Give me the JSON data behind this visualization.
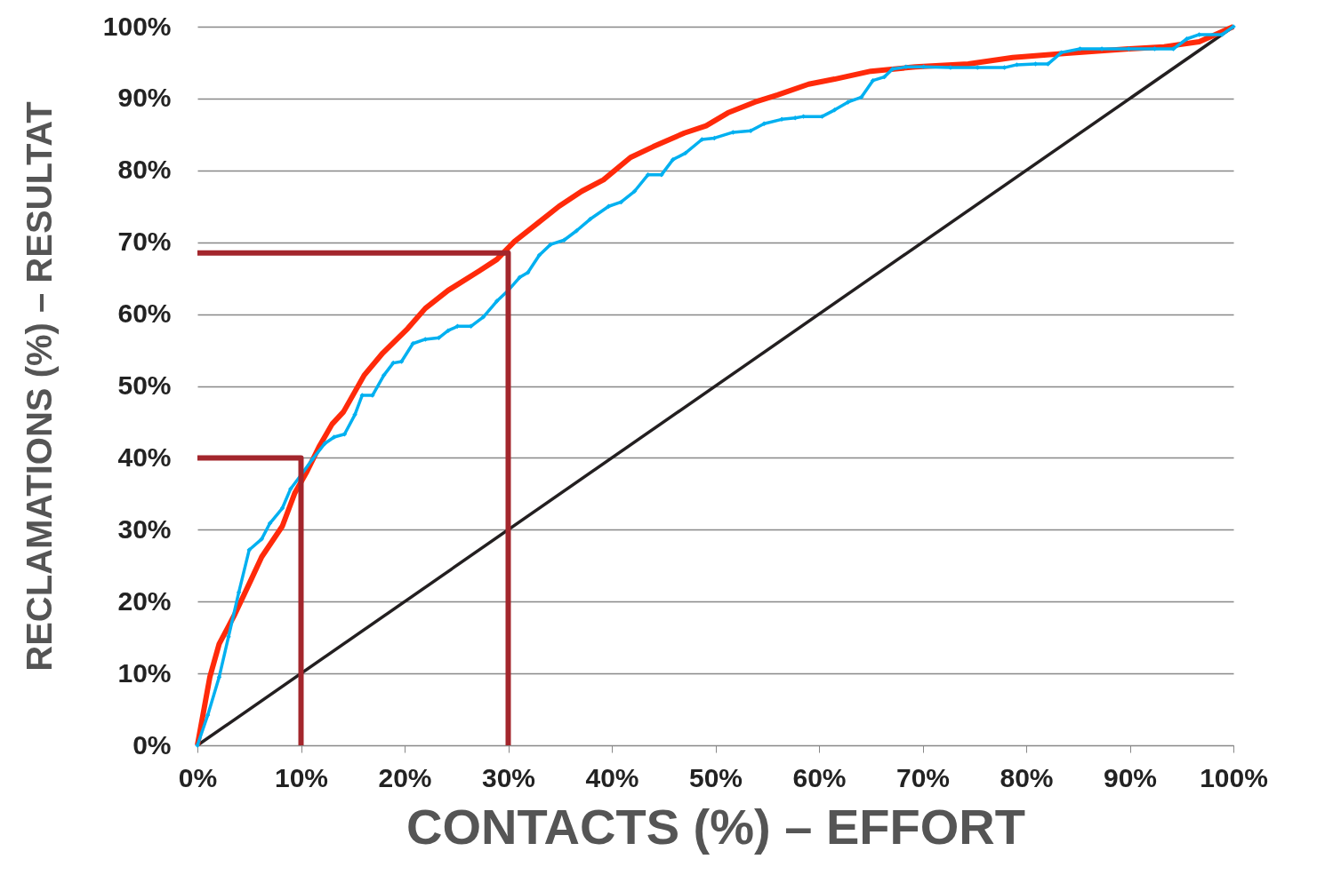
{
  "chart_data": {
    "type": "line",
    "xlabel": "CONTACTS (%) – EFFORT",
    "ylabel": "RECLAMATIONS (%) – RESULTAT",
    "xlim": [
      0,
      100
    ],
    "ylim": [
      0,
      100
    ],
    "xticks": [
      {
        "value": 0,
        "label": "0%"
      },
      {
        "value": 10,
        "label": "10%"
      },
      {
        "value": 20,
        "label": "20%"
      },
      {
        "value": 30,
        "label": "30%"
      },
      {
        "value": 40,
        "label": "40%"
      },
      {
        "value": 50,
        "label": "50%"
      },
      {
        "value": 60,
        "label": "60%"
      },
      {
        "value": 70,
        "label": "70%"
      },
      {
        "value": 80,
        "label": "80%"
      },
      {
        "value": 90,
        "label": "90%"
      },
      {
        "value": 100,
        "label": "100%"
      }
    ],
    "yticks": [
      {
        "value": 0,
        "label": "0%"
      },
      {
        "value": 10,
        "label": "10%"
      },
      {
        "value": 20,
        "label": "20%"
      },
      {
        "value": 30,
        "label": "30%"
      },
      {
        "value": 40,
        "label": "40%"
      },
      {
        "value": 50,
        "label": "50%"
      },
      {
        "value": 60,
        "label": "60%"
      },
      {
        "value": 70,
        "label": "70%"
      },
      {
        "value": 80,
        "label": "80%"
      },
      {
        "value": 90,
        "label": "90%"
      },
      {
        "value": 100,
        "label": "100%"
      }
    ],
    "grid": "y",
    "line_style": "solid",
    "series": [
      {
        "color": "#231f20",
        "x": [
          0,
          100
        ],
        "values": [
          0,
          100
        ]
      },
      {
        "color": "#ff2a0a",
        "x": [
          0,
          1.2,
          2.1,
          3.6,
          5.2,
          6.2,
          8.2,
          9.4,
          10.5,
          11.8,
          13.0,
          14.1,
          16.1,
          17.9,
          20.3,
          22.0,
          24.2,
          27.2,
          28.9,
          30.6,
          32.8,
          34.9,
          37.1,
          39.2,
          41.8,
          44.0,
          47.0,
          49.1,
          51.2,
          53.8,
          56.0,
          59.0,
          61.5,
          65.0,
          69.3,
          74.4,
          78.7,
          83.9,
          89.9,
          93.3,
          96.7,
          100
        ],
        "values": [
          0,
          9.5,
          14.1,
          18.2,
          23.1,
          26.2,
          30.5,
          35.1,
          37.9,
          41.7,
          44.7,
          46.4,
          51.5,
          54.6,
          58.0,
          60.8,
          63.3,
          66.0,
          67.6,
          70.1,
          72.6,
          75.0,
          77.1,
          78.7,
          81.8,
          83.3,
          85.2,
          86.2,
          88.0,
          89.5,
          90.5,
          92.0,
          92.7,
          93.8,
          94.4,
          94.8,
          95.7,
          96.3,
          96.9,
          97.2,
          97.9,
          100
        ]
      },
      {
        "color": "#00b0f0",
        "marker": "diamond",
        "x": [
          0,
          1.0,
          2.1,
          3.0,
          4.0,
          5.0,
          6.2,
          7.0,
          8.2,
          9.0,
          10.0,
          11.1,
          12.3,
          13.2,
          14.2,
          15.2,
          15.9,
          16.9,
          18.0,
          18.9,
          19.7,
          20.8,
          22.0,
          23.3,
          24.2,
          25.1,
          26.4,
          27.6,
          28.9,
          30.0,
          31.1,
          31.9,
          33.0,
          34.1,
          35.4,
          36.6,
          37.9,
          39.7,
          40.9,
          42.2,
          43.5,
          44.8,
          45.9,
          47.1,
          48.7,
          49.9,
          51.7,
          53.4,
          54.7,
          56.4,
          57.7,
          58.5,
          60.3,
          61.5,
          62.8,
          64.1,
          65.2,
          66.3,
          67.1,
          68.4,
          70.1,
          72.7,
          75.3,
          77.9,
          79.1,
          80.9,
          82.1,
          83.4,
          85.2,
          87.3,
          89.9,
          92.4,
          94.2,
          95.5,
          96.7,
          98.9,
          100
        ],
        "values": [
          0,
          4.2,
          9.5,
          15.1,
          21.3,
          27.2,
          28.7,
          30.9,
          33.0,
          35.7,
          37.6,
          39.8,
          42.0,
          42.9,
          43.3,
          46.0,
          48.7,
          48.7,
          51.5,
          53.2,
          53.4,
          55.9,
          56.5,
          56.7,
          57.7,
          58.3,
          58.3,
          59.6,
          61.8,
          63.3,
          65.1,
          65.8,
          68.2,
          69.7,
          70.3,
          71.6,
          73.2,
          75.0,
          75.6,
          77.1,
          79.4,
          79.4,
          81.5,
          82.4,
          84.3,
          84.5,
          85.3,
          85.5,
          86.5,
          87.1,
          87.3,
          87.5,
          87.5,
          88.4,
          89.5,
          90.2,
          92.5,
          93.0,
          94.1,
          94.4,
          94.4,
          94.3,
          94.3,
          94.3,
          94.7,
          94.8,
          94.8,
          96.4,
          96.9,
          96.9,
          96.9,
          96.9,
          96.9,
          98.3,
          98.9,
          98.9,
          100
        ]
      },
      {
        "color": "#a3262c",
        "x": [
          0,
          10,
          10
        ],
        "values": [
          40,
          40,
          0
        ]
      },
      {
        "color": "#a3262c",
        "x": [
          0,
          30,
          30
        ],
        "values": [
          68.5,
          68.5,
          0
        ]
      }
    ]
  }
}
